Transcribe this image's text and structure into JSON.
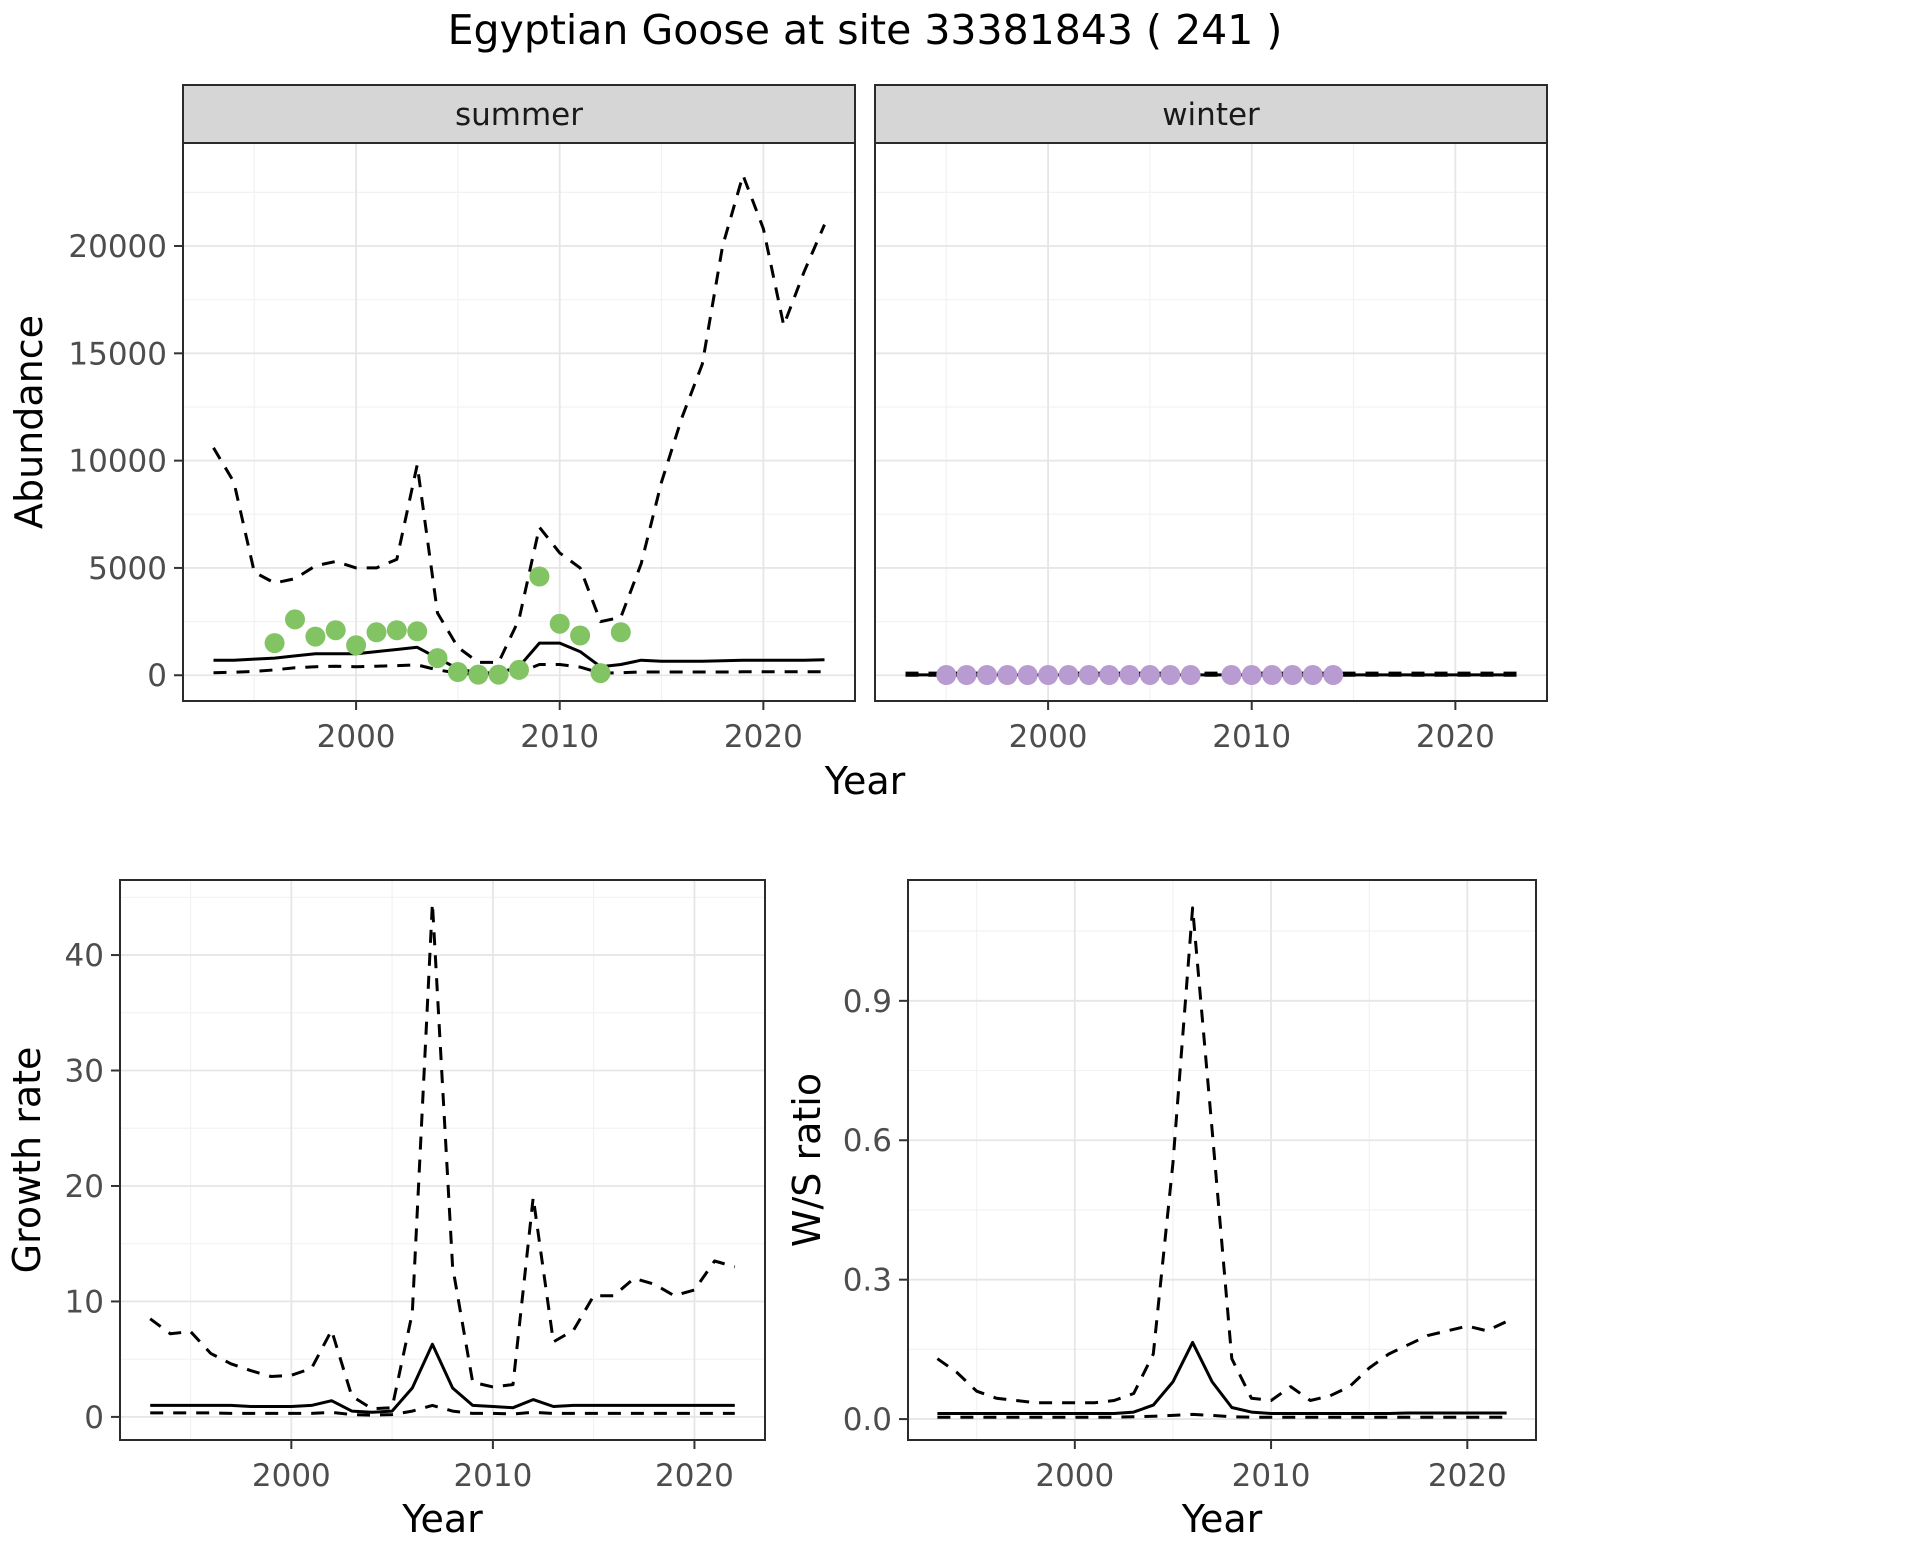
{
  "title": "Egyptian Goose at site 33381843 ( 241 )",
  "colors": {
    "line": "#000000",
    "summer_points": "#82c364",
    "winter_points": "#b89bd1",
    "strip_bg": "#d6d6d6",
    "panel_border": "#2b2b2b",
    "grid_major": "#e6e6e6",
    "grid_minor": "#f2f2f2",
    "tick_mark": "#333333"
  },
  "chart_data": [
    {
      "id": "abundance_summer",
      "type": "line",
      "facet": "summer",
      "xlabel": "Year",
      "ylabel": "Abundance",
      "grid": true,
      "legend": "none",
      "xlim": [
        1991.5,
        2024.5
      ],
      "ylim": [
        -1200,
        24800
      ],
      "xticks": [
        2000,
        2010,
        2020
      ],
      "xtick_labels": [
        "2000",
        "2010",
        "2020"
      ],
      "yticks": [
        0,
        5000,
        10000,
        15000,
        20000
      ],
      "ytick_labels": [
        "0",
        "5000",
        "10000",
        "15000",
        "20000"
      ],
      "x": [
        1993,
        1994,
        1995,
        1996,
        1997,
        1998,
        1999,
        2000,
        2001,
        2002,
        2003,
        2004,
        2005,
        2006,
        2007,
        2008,
        2009,
        2010,
        2011,
        2012,
        2013,
        2014,
        2015,
        2016,
        2017,
        2018,
        2019,
        2020,
        2021,
        2022,
        2023
      ],
      "series": [
        {
          "name": "upper_ci",
          "style": "dashed",
          "values": [
            10600,
            9000,
            4800,
            4300,
            4500,
            5100,
            5300,
            5000,
            5000,
            5400,
            9800,
            2900,
            1300,
            600,
            600,
            2600,
            6900,
            5700,
            5000,
            2500,
            2700,
            5200,
            9000,
            12000,
            14500,
            20000,
            23300,
            20800,
            16300,
            18800,
            21000
          ]
        },
        {
          "name": "lower_ci",
          "style": "dashed",
          "values": [
            120,
            140,
            180,
            250,
            350,
            400,
            420,
            400,
            420,
            450,
            480,
            250,
            100,
            40,
            40,
            120,
            500,
            500,
            380,
            100,
            120,
            150,
            150,
            150,
            150,
            150,
            160,
            160,
            160,
            160,
            160
          ]
        },
        {
          "name": "median",
          "style": "solid",
          "values": [
            700,
            700,
            750,
            800,
            900,
            1000,
            1000,
            1000,
            1100,
            1200,
            1300,
            800,
            300,
            120,
            100,
            400,
            1500,
            1500,
            1100,
            400,
            500,
            700,
            650,
            650,
            650,
            680,
            700,
            700,
            700,
            700,
            720
          ]
        }
      ],
      "points": {
        "name": "observed-summer-count",
        "color_key": "summer_points",
        "x": [
          1996,
          1997,
          1998,
          1999,
          2000,
          2001,
          2002,
          2003,
          2004,
          2005,
          2006,
          2007,
          2008,
          2009,
          2010,
          2011,
          2012,
          2013
        ],
        "y": [
          1500,
          2600,
          1800,
          2100,
          1400,
          2000,
          2100,
          2050,
          800,
          150,
          30,
          30,
          250,
          4600,
          2400,
          1850,
          100,
          2000
        ]
      }
    },
    {
      "id": "abundance_winter",
      "type": "line",
      "facet": "winter",
      "xlabel": "Year",
      "ylabel": "Abundance",
      "grid": true,
      "legend": "none",
      "xlim": [
        1991.5,
        2024.5
      ],
      "ylim": [
        -1200,
        24800
      ],
      "xticks": [
        2000,
        2010,
        2020
      ],
      "xtick_labels": [
        "2000",
        "2010",
        "2020"
      ],
      "yticks": [
        0,
        5000,
        10000,
        15000,
        20000
      ],
      "ytick_labels": [
        "0",
        "5000",
        "10000",
        "15000",
        "20000"
      ],
      "x": [
        1993,
        1994,
        1995,
        1996,
        1997,
        1998,
        1999,
        2000,
        2001,
        2002,
        2003,
        2004,
        2005,
        2006,
        2007,
        2008,
        2009,
        2010,
        2011,
        2012,
        2013,
        2014,
        2015,
        2016,
        2017,
        2018,
        2019,
        2020,
        2021,
        2022,
        2023
      ],
      "series": [
        {
          "name": "upper_ci",
          "style": "dashed",
          "values": [
            100,
            100,
            100,
            100,
            100,
            100,
            100,
            100,
            100,
            100,
            100,
            100,
            100,
            100,
            100,
            100,
            100,
            100,
            100,
            100,
            100,
            100,
            100,
            100,
            100,
            100,
            100,
            100,
            100,
            100,
            100
          ]
        },
        {
          "name": "lower_ci",
          "style": "dashed",
          "values": [
            3,
            3,
            3,
            3,
            3,
            3,
            3,
            3,
            3,
            3,
            3,
            3,
            3,
            3,
            3,
            3,
            3,
            3,
            3,
            3,
            3,
            3,
            3,
            3,
            3,
            3,
            3,
            3,
            3,
            3,
            3
          ]
        },
        {
          "name": "median",
          "style": "solid",
          "values": [
            15,
            15,
            15,
            15,
            15,
            15,
            15,
            15,
            15,
            15,
            15,
            15,
            15,
            15,
            15,
            15,
            15,
            15,
            15,
            15,
            15,
            15,
            15,
            15,
            15,
            15,
            15,
            15,
            15,
            15,
            15
          ]
        }
      ],
      "points": {
        "name": "observed-winter-count",
        "color_key": "winter_points",
        "x": [
          1995,
          1996,
          1997,
          1998,
          1999,
          2000,
          2001,
          2002,
          2003,
          2004,
          2005,
          2006,
          2007,
          2009,
          2010,
          2011,
          2012,
          2013,
          2014
        ],
        "y": [
          10,
          10,
          10,
          10,
          10,
          10,
          10,
          10,
          10,
          10,
          10,
          10,
          10,
          10,
          10,
          10,
          10,
          10,
          10
        ]
      }
    },
    {
      "id": "growth_rate",
      "type": "line",
      "facet": null,
      "xlabel": "Year",
      "ylabel": "Growth rate",
      "grid": true,
      "legend": "none",
      "xlim": [
        1991.5,
        2023.5
      ],
      "ylim": [
        -2,
        46.5
      ],
      "xticks": [
        2000,
        2010,
        2020
      ],
      "xtick_labels": [
        "2000",
        "2010",
        "2020"
      ],
      "yticks": [
        0,
        10,
        20,
        30,
        40
      ],
      "ytick_labels": [
        "0",
        "10",
        "20",
        "30",
        "40"
      ],
      "x": [
        1993,
        1994,
        1995,
        1996,
        1997,
        1998,
        1999,
        2000,
        2001,
        2002,
        2003,
        2004,
        2005,
        2006,
        2007,
        2008,
        2009,
        2010,
        2011,
        2012,
        2013,
        2014,
        2015,
        2016,
        2017,
        2018,
        2019,
        2020,
        2021,
        2022
      ],
      "series": [
        {
          "name": "upper_ci",
          "style": "dashed",
          "values": [
            8.5,
            7.2,
            7.4,
            5.5,
            4.6,
            4.0,
            3.5,
            3.6,
            4.2,
            7.5,
            1.8,
            0.7,
            0.8,
            9.0,
            44.5,
            13.0,
            3.0,
            2.6,
            2.8,
            19.0,
            6.5,
            7.5,
            10.5,
            10.5,
            12.0,
            11.5,
            10.5,
            11.0,
            13.5,
            13.0
          ]
        },
        {
          "name": "lower_ci",
          "style": "dashed",
          "values": [
            0.35,
            0.35,
            0.35,
            0.35,
            0.3,
            0.3,
            0.3,
            0.3,
            0.3,
            0.4,
            0.2,
            0.15,
            0.2,
            0.5,
            1.0,
            0.5,
            0.3,
            0.3,
            0.25,
            0.4,
            0.3,
            0.3,
            0.3,
            0.3,
            0.3,
            0.3,
            0.3,
            0.3,
            0.3,
            0.3
          ]
        },
        {
          "name": "median",
          "style": "solid",
          "values": [
            1.0,
            1.0,
            1.0,
            1.0,
            1.0,
            0.9,
            0.9,
            0.9,
            1.0,
            1.4,
            0.5,
            0.4,
            0.5,
            2.5,
            6.3,
            2.5,
            1.0,
            0.9,
            0.8,
            1.5,
            0.9,
            1.0,
            1.0,
            1.0,
            1.0,
            1.0,
            1.0,
            1.0,
            1.0,
            1.0
          ]
        }
      ]
    },
    {
      "id": "ws_ratio",
      "type": "line",
      "facet": null,
      "xlabel": "Year",
      "ylabel": "W/S ratio",
      "grid": true,
      "legend": "none",
      "xlim": [
        1991.5,
        2023.5
      ],
      "ylim": [
        -0.045,
        1.16
      ],
      "xticks": [
        2000,
        2010,
        2020
      ],
      "xtick_labels": [
        "2000",
        "2010",
        "2020"
      ],
      "yticks": [
        0,
        0.3,
        0.6,
        0.9
      ],
      "ytick_labels": [
        "0.0",
        "0.3",
        "0.6",
        "0.9"
      ],
      "x": [
        1993,
        1994,
        1995,
        1996,
        1997,
        1998,
        1999,
        2000,
        2001,
        2002,
        2003,
        2004,
        2005,
        2006,
        2007,
        2008,
        2009,
        2010,
        2011,
        2012,
        2013,
        2014,
        2015,
        2016,
        2017,
        2018,
        2019,
        2020,
        2021,
        2022
      ],
      "series": [
        {
          "name": "upper_ci",
          "style": "dashed",
          "values": [
            0.13,
            0.1,
            0.06,
            0.045,
            0.04,
            0.035,
            0.035,
            0.035,
            0.035,
            0.04,
            0.055,
            0.14,
            0.55,
            1.1,
            0.62,
            0.13,
            0.045,
            0.04,
            0.07,
            0.04,
            0.05,
            0.07,
            0.11,
            0.14,
            0.16,
            0.18,
            0.19,
            0.2,
            0.19,
            0.21
          ]
        },
        {
          "name": "lower_ci",
          "style": "dashed",
          "values": [
            0.004,
            0.004,
            0.004,
            0.004,
            0.004,
            0.004,
            0.004,
            0.004,
            0.004,
            0.004,
            0.005,
            0.006,
            0.008,
            0.01,
            0.008,
            0.005,
            0.004,
            0.004,
            0.004,
            0.004,
            0.004,
            0.004,
            0.004,
            0.004,
            0.004,
            0.004,
            0.004,
            0.004,
            0.004,
            0.004
          ]
        },
        {
          "name": "median",
          "style": "solid",
          "values": [
            0.012,
            0.012,
            0.012,
            0.012,
            0.012,
            0.012,
            0.012,
            0.012,
            0.012,
            0.012,
            0.015,
            0.03,
            0.08,
            0.165,
            0.08,
            0.025,
            0.015,
            0.012,
            0.012,
            0.012,
            0.012,
            0.012,
            0.012,
            0.012,
            0.013,
            0.013,
            0.013,
            0.013,
            0.013,
            0.013
          ]
        }
      ]
    }
  ]
}
